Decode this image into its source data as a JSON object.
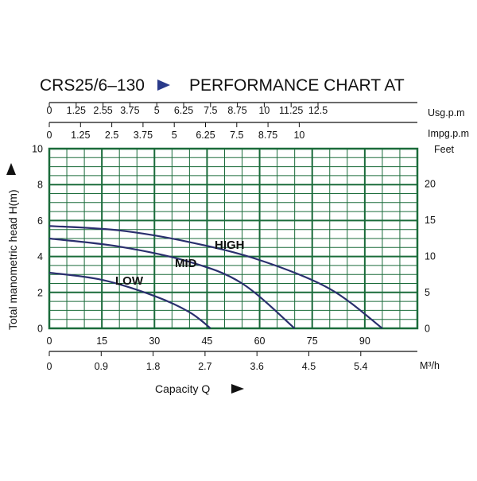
{
  "chart_data": {
    "type": "line",
    "title": "CRS25/6–130",
    "title_suffix": "PERFORMANCE CHART AT",
    "ylabel": "Total manometric head H(m)",
    "xlabel": "Capacity  Q",
    "ylim": [
      0,
      10
    ],
    "xlim": [
      0,
      105
    ],
    "grid": true,
    "y_ticks": [
      0,
      2,
      4,
      6,
      8,
      10
    ],
    "x_ticks": [
      0,
      15,
      30,
      45,
      60,
      75,
      90
    ],
    "axes": {
      "usgpm": {
        "unit": "Usg.p.m",
        "ticks": [
          "0",
          "1.25",
          "2.55",
          "3.75",
          "5",
          "6.25",
          "7.5",
          "8.75",
          "10",
          "11.25",
          "12.5"
        ]
      },
      "impgpm": {
        "unit": "Impg.p.m",
        "ticks": [
          "0",
          "1.25",
          "2.5",
          "3.75",
          "5",
          "6.25",
          "7.5",
          "8.75",
          "10"
        ]
      },
      "feet": {
        "unit": "Feet",
        "ticks": [
          "0",
          "5",
          "10",
          "15",
          "20"
        ]
      },
      "m3h": {
        "unit": "M³/h",
        "ticks": [
          "0",
          "0.9",
          "1.8",
          "2.7",
          "3.6",
          "4.5",
          "5.4"
        ]
      }
    },
    "series": [
      {
        "name": "HIGH",
        "x": [
          0,
          20,
          40,
          60,
          80,
          95
        ],
        "y": [
          5.7,
          5.45,
          4.8,
          3.8,
          2.2,
          0
        ]
      },
      {
        "name": "MID",
        "x": [
          0,
          20,
          40,
          55,
          70
        ],
        "y": [
          5.0,
          4.55,
          3.7,
          2.5,
          0
        ]
      },
      {
        "name": "LOW",
        "x": [
          0,
          15,
          30,
          40,
          46
        ],
        "y": [
          3.1,
          2.7,
          1.8,
          0.9,
          0
        ]
      }
    ]
  },
  "colors": {
    "grid": "#1a6b3a",
    "curve": "#2a2f6e",
    "arrow": "#2a3a8a"
  }
}
